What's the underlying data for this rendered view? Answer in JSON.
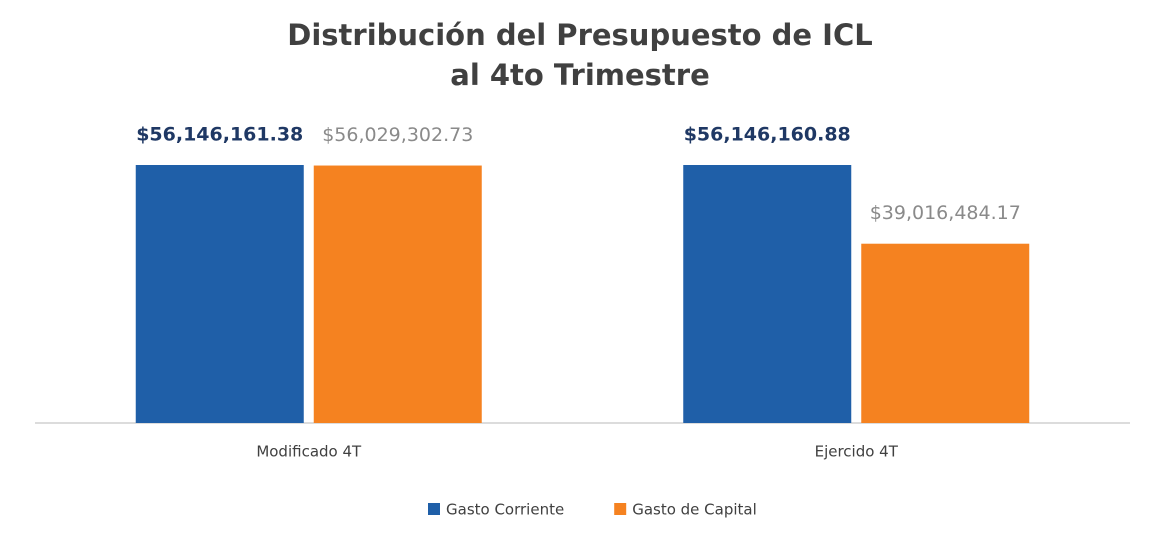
{
  "chart_data": {
    "type": "bar",
    "title": [
      "Distribución  del Presupuesto de ICL",
      "al 4to Trimestre"
    ],
    "categories": [
      "Modificado 4T",
      "Ejercido 4T"
    ],
    "series": [
      {
        "name": "Gasto Corriente",
        "color": "#1f5fa8",
        "values": [
          56146161.38,
          56146160.88
        ],
        "value_labels": [
          "$56,146,161.38",
          "$56,146,160.88"
        ]
      },
      {
        "name": "Gasto de Capital",
        "color": "#f58220",
        "values": [
          56029302.73,
          39016484.17
        ],
        "value_labels": [
          "$56,029,302.73",
          "$39,016,484.17"
        ]
      }
    ],
    "legend": "bottom"
  }
}
